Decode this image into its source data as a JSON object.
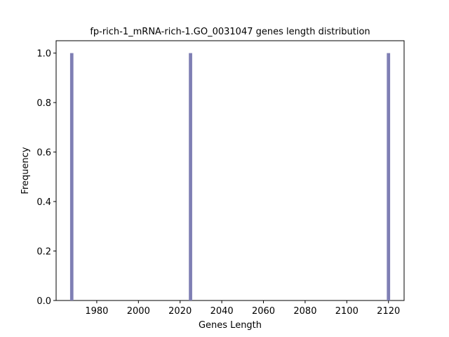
{
  "chart_data": {
    "type": "bar",
    "title": "fp-rich-1_mRNA-rich-1.GO_0031047 genes length distribution",
    "xlabel": "Genes Length",
    "ylabel": "Frequency",
    "bars": [
      {
        "x": 1968,
        "value": 1.0
      },
      {
        "x": 2025,
        "value": 1.0
      },
      {
        "x": 2120,
        "value": 1.0
      }
    ],
    "bar_width": 1.6,
    "bar_color": "#7f7fb4",
    "xlim": [
      1960.5,
      2127.5
    ],
    "ylim": [
      0,
      1.05
    ],
    "xticks": [
      1980,
      2000,
      2020,
      2040,
      2060,
      2080,
      2100,
      2120
    ],
    "yticks": [
      0.0,
      0.2,
      0.4,
      0.6,
      0.8,
      1.0
    ],
    "grid": false,
    "legend": false
  }
}
